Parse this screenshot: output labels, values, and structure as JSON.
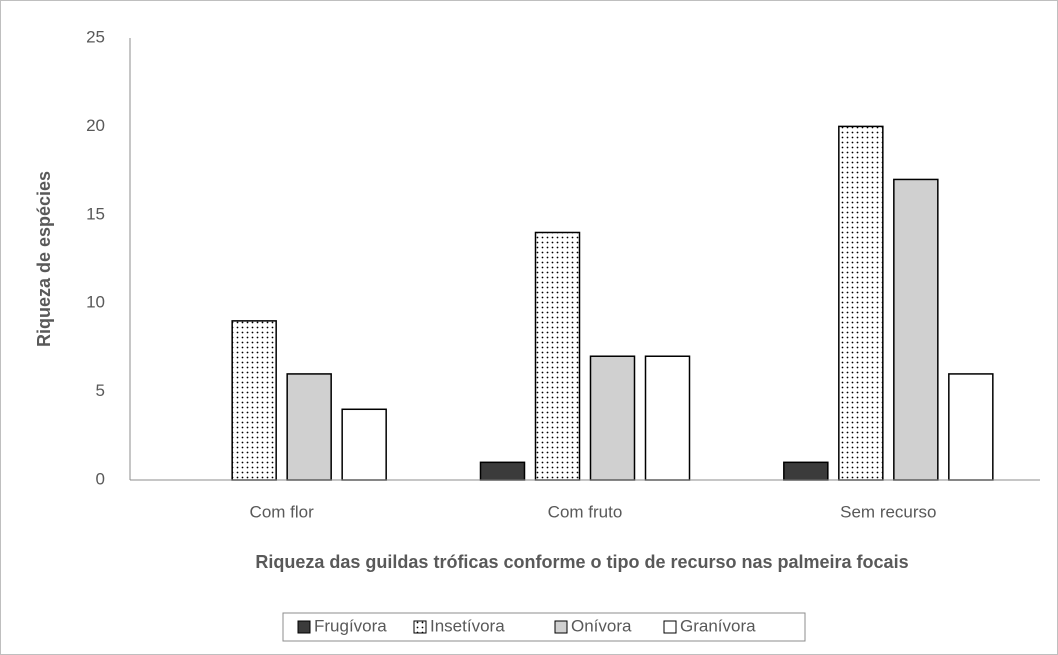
{
  "chart_data": {
    "type": "bar",
    "x_label": "Riqueza das guildas tróficas conforme o tipo de recurso nas palmeira focais",
    "y_label": "Riqueza de espécies",
    "categories": [
      "Com flor",
      "Com fruto",
      "Sem recurso"
    ],
    "series": [
      {
        "name": "Frugívora",
        "color": "#3b3b3b",
        "values": [
          0,
          1,
          1
        ]
      },
      {
        "name": "Insetívora",
        "color": "#ffffff",
        "pattern": "dots",
        "values": [
          9,
          14,
          20
        ]
      },
      {
        "name": "Onívora",
        "color": "#d0d0d0",
        "values": [
          6,
          7,
          17
        ]
      },
      {
        "name": "Granívora",
        "color": "#ffffff",
        "values": [
          4,
          7,
          6
        ]
      }
    ],
    "ylim": [
      0,
      25
    ],
    "yticks": [
      0,
      5,
      10,
      15,
      20,
      25
    ],
    "grid": false,
    "legend": "bottom"
  }
}
